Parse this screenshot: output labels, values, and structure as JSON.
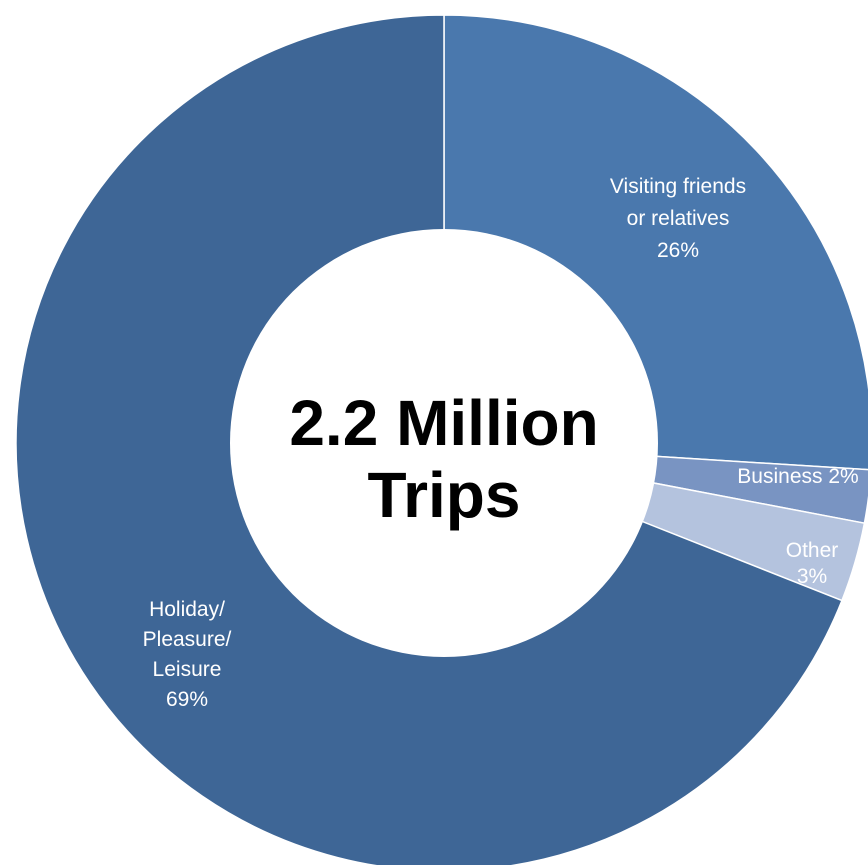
{
  "chart_data": {
    "type": "pie",
    "style": "donut",
    "center_text": [
      "2.2 Million",
      "Trips"
    ],
    "slices": [
      {
        "name": "Visiting friends or relatives",
        "label_lines": [
          "Visiting friends",
          "or relatives",
          "26%"
        ],
        "value": 26,
        "color": "#4a78ad"
      },
      {
        "name": "Business",
        "label_lines": [
          "Business 2%"
        ],
        "value": 2,
        "color": "#7994c2"
      },
      {
        "name": "Other",
        "label_lines": [
          "Other",
          "3%"
        ],
        "value": 3,
        "color": "#b4c3de"
      },
      {
        "name": "Holiday/ Pleasure/ Leisure",
        "label_lines": [
          "Holiday/",
          "Pleasure/",
          "Leisure",
          "69%"
        ],
        "value": 69,
        "color": "#3e6696"
      }
    ],
    "start_angle_deg": 0,
    "direction": "clockwise"
  }
}
